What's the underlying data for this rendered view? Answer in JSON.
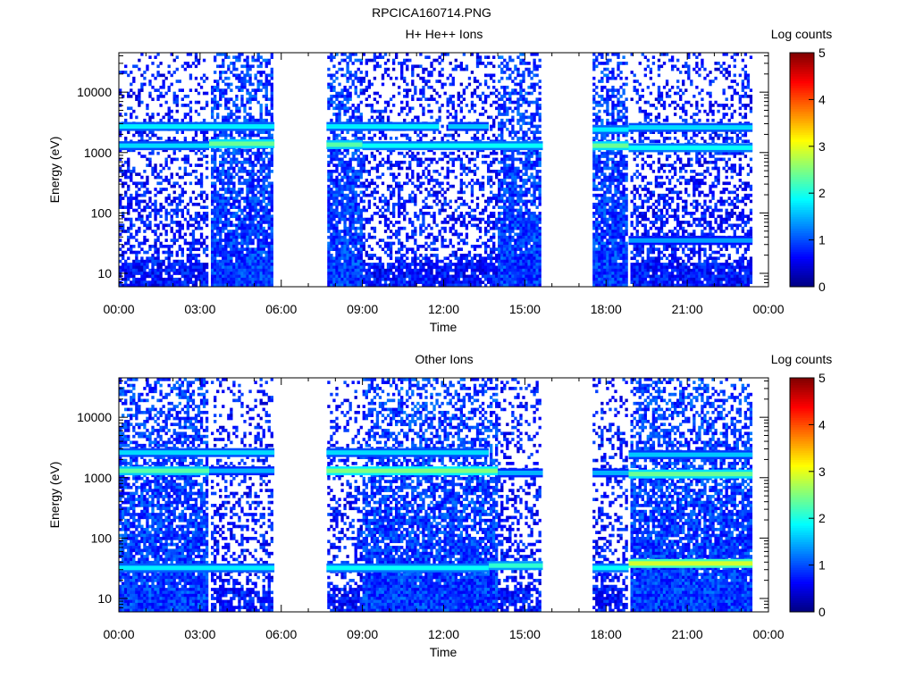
{
  "figure_title": "RPCICA160714.PNG",
  "chart_data": [
    {
      "type": "heatmap",
      "title": "H+ He++ Ions",
      "xlabel": "Time",
      "ylabel": "Energy (eV)",
      "y_scale": "log",
      "ylim": [
        6,
        45000
      ],
      "y_ticks": [
        10,
        100,
        1000,
        10000
      ],
      "y_tick_labels": [
        "10",
        "100",
        "1000",
        "10000"
      ],
      "xlim_hours": [
        0,
        24
      ],
      "x_ticks": [
        "00:00",
        "03:00",
        "06:00",
        "09:00",
        "12:00",
        "15:00",
        "18:00",
        "21:00",
        "00:00"
      ],
      "colorbar": {
        "label": "Log counts",
        "min": 0,
        "max": 5,
        "ticks": [
          "0",
          "1",
          "2",
          "3",
          "4",
          "5"
        ]
      },
      "data_gaps": [
        [
          "05:45",
          "07:40"
        ],
        [
          "15:40",
          "17:30"
        ],
        [
          "23:25",
          "00:00"
        ]
      ],
      "background_levels": [
        {
          "time_range": [
            "00:00",
            "03:20"
          ],
          "density": 0.45,
          "log_counts": 0.7
        },
        {
          "time_range": [
            "03:20",
            "05:45"
          ],
          "density": 0.85,
          "log_counts": 0.9
        },
        {
          "time_range": [
            "07:40",
            "09:00"
          ],
          "density": 0.85,
          "log_counts": 0.9
        },
        {
          "time_range": [
            "09:00",
            "14:00"
          ],
          "density": 0.45,
          "log_counts": 0.7
        },
        {
          "time_range": [
            "14:00",
            "15:40"
          ],
          "density": 0.85,
          "log_counts": 0.9
        },
        {
          "time_range": [
            "17:30",
            "18:50"
          ],
          "density": 0.85,
          "log_counts": 0.9
        },
        {
          "time_range": [
            "18:50",
            "23:25"
          ],
          "density": 0.5,
          "log_counts": 0.7
        }
      ],
      "bands": [
        {
          "energy_eV": 2700,
          "time_range": [
            "00:00",
            "05:45"
          ],
          "log_counts": 1.8
        },
        {
          "energy_eV": 1300,
          "time_range": [
            "00:00",
            "03:20"
          ],
          "log_counts": 1.7
        },
        {
          "energy_eV": 1400,
          "time_range": [
            "03:20",
            "05:45"
          ],
          "log_counts": 2.4
        },
        {
          "energy_eV": 2700,
          "time_range": [
            "07:40",
            "11:50"
          ],
          "log_counts": 1.8
        },
        {
          "energy_eV": 2700,
          "time_range": [
            "12:10",
            "13:40"
          ],
          "log_counts": 1.6
        },
        {
          "energy_eV": 1350,
          "time_range": [
            "07:40",
            "09:00"
          ],
          "log_counts": 2.3
        },
        {
          "energy_eV": 1300,
          "time_range": [
            "09:00",
            "15:40"
          ],
          "log_counts": 1.9
        },
        {
          "energy_eV": 2400,
          "time_range": [
            "17:30",
            "18:50"
          ],
          "log_counts": 1.8
        },
        {
          "energy_eV": 1300,
          "time_range": [
            "17:30",
            "18:50"
          ],
          "log_counts": 2.4
        },
        {
          "energy_eV": 2600,
          "time_range": [
            "18:50",
            "23:25"
          ],
          "log_counts": 1.7
        },
        {
          "energy_eV": 1200,
          "time_range": [
            "18:50",
            "23:25"
          ],
          "log_counts": 1.9
        },
        {
          "energy_eV": 35,
          "time_range": [
            "18:50",
            "23:25"
          ],
          "log_counts": 1.4
        }
      ]
    },
    {
      "type": "heatmap",
      "title": "Other Ions",
      "xlabel": "Time",
      "ylabel": "Energy (eV)",
      "y_scale": "log",
      "ylim": [
        6,
        45000
      ],
      "y_ticks": [
        10,
        100,
        1000,
        10000
      ],
      "y_tick_labels": [
        "10",
        "100",
        "1000",
        "10000"
      ],
      "xlim_hours": [
        0,
        24
      ],
      "x_ticks": [
        "00:00",
        "03:00",
        "06:00",
        "09:00",
        "12:00",
        "15:00",
        "18:00",
        "21:00",
        "00:00"
      ],
      "colorbar": {
        "label": "Log counts",
        "min": 0,
        "max": 5,
        "ticks": [
          "0",
          "1",
          "2",
          "3",
          "4",
          "5"
        ]
      },
      "data_gaps": [
        [
          "05:45",
          "07:40"
        ],
        [
          "15:40",
          "17:30"
        ],
        [
          "23:25",
          "00:00"
        ]
      ],
      "background_levels": [
        {
          "time_range": [
            "00:00",
            "03:20"
          ],
          "density": 0.85,
          "log_counts": 0.9
        },
        {
          "time_range": [
            "03:20",
            "05:45"
          ],
          "density": 0.4,
          "log_counts": 0.7
        },
        {
          "time_range": [
            "07:40",
            "09:00"
          ],
          "density": 0.4,
          "log_counts": 0.7
        },
        {
          "time_range": [
            "09:00",
            "14:00"
          ],
          "density": 0.85,
          "log_counts": 0.9
        },
        {
          "time_range": [
            "14:00",
            "15:40"
          ],
          "density": 0.4,
          "log_counts": 0.7
        },
        {
          "time_range": [
            "17:30",
            "18:50"
          ],
          "density": 0.4,
          "log_counts": 0.7
        },
        {
          "time_range": [
            "18:50",
            "23:25"
          ],
          "density": 0.88,
          "log_counts": 0.9
        }
      ],
      "bands": [
        {
          "energy_eV": 2600,
          "time_range": [
            "00:00",
            "05:45"
          ],
          "log_counts": 1.7
        },
        {
          "energy_eV": 1300,
          "time_range": [
            "00:00",
            "03:20"
          ],
          "log_counts": 2.3
        },
        {
          "energy_eV": 1300,
          "time_range": [
            "03:20",
            "05:45"
          ],
          "log_counts": 1.5
        },
        {
          "energy_eV": 2600,
          "time_range": [
            "07:40",
            "13:40"
          ],
          "log_counts": 1.7
        },
        {
          "energy_eV": 1300,
          "time_range": [
            "07:40",
            "14:00"
          ],
          "log_counts": 2.5
        },
        {
          "energy_eV": 1200,
          "time_range": [
            "14:00",
            "15:40"
          ],
          "log_counts": 1.5
        },
        {
          "energy_eV": 1200,
          "time_range": [
            "17:30",
            "18:50"
          ],
          "log_counts": 1.5
        },
        {
          "energy_eV": 2400,
          "time_range": [
            "18:50",
            "23:25"
          ],
          "log_counts": 1.6
        },
        {
          "energy_eV": 1150,
          "time_range": [
            "18:50",
            "23:25"
          ],
          "log_counts": 2.4
        },
        {
          "energy_eV": 32,
          "time_range": [
            "00:00",
            "05:45"
          ],
          "log_counts": 1.8
        },
        {
          "energy_eV": 32,
          "time_range": [
            "07:40",
            "13:40"
          ],
          "log_counts": 1.9
        },
        {
          "energy_eV": 35,
          "time_range": [
            "13:40",
            "15:40"
          ],
          "log_counts": 2.1
        },
        {
          "energy_eV": 32,
          "time_range": [
            "17:30",
            "18:50"
          ],
          "log_counts": 1.9
        },
        {
          "energy_eV": 38,
          "time_range": [
            "18:50",
            "23:25"
          ],
          "log_counts": 2.9
        }
      ]
    }
  ]
}
